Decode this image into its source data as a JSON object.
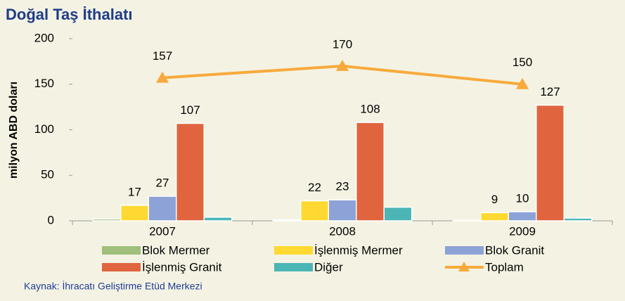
{
  "chart_data": {
    "type": "bar",
    "title": "Doğal Taş İthalatı",
    "ylabel": "milyon ABD doları",
    "source": "Kaynak: İhracatı Geliştirme Etüd Merkezi",
    "categories": [
      "2007",
      "2008",
      "2009"
    ],
    "ylim": [
      0,
      200
    ],
    "yticks": [
      0,
      50,
      100,
      150,
      200
    ],
    "grid": false,
    "series": [
      {
        "name": "Blok Mermer",
        "color": "#9fbf7a",
        "values": [
          2,
          1,
          0.5
        ],
        "show_labels": false
      },
      {
        "name": "İşlenmiş Mermer",
        "color": "#ffd932",
        "values": [
          17,
          22,
          9
        ],
        "show_labels": true
      },
      {
        "name": "Blok Granit",
        "color": "#8da2d6",
        "values": [
          27,
          23,
          10
        ],
        "show_labels": true
      },
      {
        "name": "İşlenmiş Granit",
        "color": "#e0653f",
        "values": [
          107,
          108,
          127
        ],
        "show_labels": true
      },
      {
        "name": "Diğer",
        "color": "#4cb6b6",
        "values": [
          4,
          15,
          3
        ],
        "show_labels": false
      },
      {
        "name": "Toplam",
        "type": "line",
        "color": "#f7aa3c",
        "values": [
          157,
          170,
          150
        ],
        "show_labels": true
      }
    ]
  }
}
